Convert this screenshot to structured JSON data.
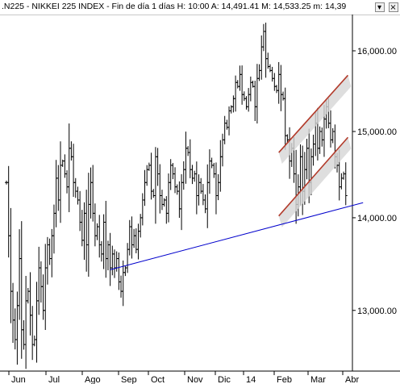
{
  "window": {
    "title": ".N225 - NIKKEI 225 INDEX - Fin de día 1 días  H: 10:00  A: 14,491.41  M: 14,533.25  m: 14,39"
  },
  "chart_data": {
    "type": "ohlc",
    "title": "",
    "y_axis": {
      "ticks": [
        {
          "value": 13000,
          "label": "13,000.00"
        },
        {
          "value": 14000,
          "label": "14,000.00"
        },
        {
          "value": 15000,
          "label": "15,000.00"
        },
        {
          "value": 16000,
          "label": "16,000.00"
        }
      ],
      "range": [
        12400,
        16450
      ],
      "scale": "log"
    },
    "x_axis": {
      "ticks": [
        "Jun",
        "Jul",
        "Ago",
        "Sep",
        "Oct",
        "Nov",
        "Dic",
        "14",
        "Feb",
        "Mar",
        "Abr"
      ]
    },
    "series_close": [
      14400,
      13800,
      13200,
      12900,
      12700,
      13050,
      13550,
      12800,
      12650,
      13100,
      13200,
      12950,
      12650,
      12700,
      13100,
      13450,
      13250,
      13000,
      13450,
      13700,
      13550,
      13800,
      14050,
      14450,
      14200,
      14600,
      14650,
      14500,
      14350,
      14800,
      14700,
      14400,
      14300,
      14200,
      13950,
      13750,
      14050,
      13700,
      14150,
      14400,
      14050,
      13800,
      13900,
      13700,
      13600,
      13950,
      13550,
      13700,
      13450,
      13600,
      13450,
      13550,
      13300,
      13200,
      13400,
      13450,
      13650,
      13900,
      13700,
      13800,
      13650,
      13850,
      14000,
      14200,
      14400,
      14550,
      14600,
      14300,
      14250,
      14700,
      14500,
      14250,
      14150,
      14200,
      14050,
      14400,
      14600,
      14500,
      14350,
      14300,
      14100,
      14400,
      14550,
      14800,
      14750,
      14550,
      14450,
      14500,
      14250,
      14400,
      14300,
      14200,
      14100,
      14400,
      14650,
      14600,
      14500,
      14250,
      14400,
      14700,
      14900,
      15100,
      15050,
      15250,
      15300,
      15400,
      15600,
      15550,
      15700,
      15450,
      15400,
      15300,
      15450,
      15600,
      15550,
      15300,
      15650,
      15750,
      16050,
      16250,
      15900,
      15800,
      15750,
      15650,
      15550,
      15500,
      15700,
      15450,
      15400,
      14950,
      14900,
      14650,
      14800,
      14500,
      14150,
      14350,
      14700,
      14300,
      14550,
      14800,
      14400,
      14700,
      14850,
      15100,
      14800,
      15000,
      14900,
      15150,
      15300,
      15100,
      14900,
      15000,
      14700,
      14600,
      14350,
      14450,
      14500,
      14250
    ],
    "annotations": [
      {
        "type": "trendline",
        "color": "#0000cc",
        "from": {
          "x_index": 48,
          "value": 13430
        },
        "to": {
          "x_index": 165,
          "value": 14170
        }
      },
      {
        "type": "trendline",
        "color": "#b23a2a",
        "from": {
          "x_index": 126,
          "value": 14750
        },
        "to": {
          "x_index": 158,
          "value": 15690
        }
      },
      {
        "type": "trendline",
        "color": "#b23a2a",
        "from": {
          "x_index": 126,
          "value": 14020
        },
        "to": {
          "x_index": 158,
          "value": 14930
        }
      }
    ]
  }
}
